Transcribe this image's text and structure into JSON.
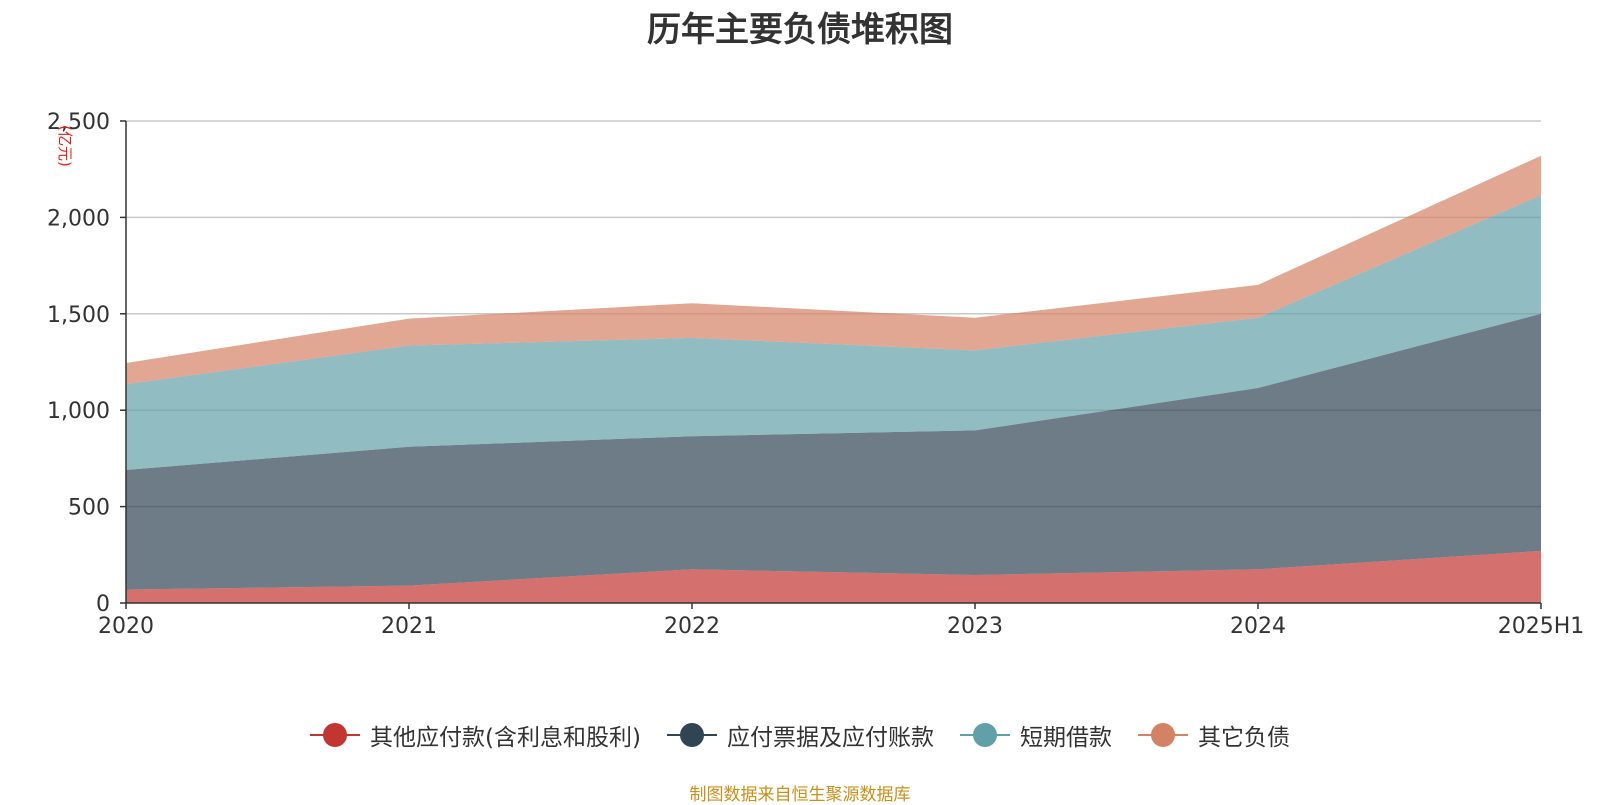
{
  "chart_data": {
    "type": "area",
    "stacked": true,
    "title": "历年主要负债堆积图",
    "unit": "(亿元)",
    "categories": [
      "2020",
      "2021",
      "2022",
      "2023",
      "2024",
      "2025H1"
    ],
    "ylim": [
      0,
      2500
    ],
    "yticks": [
      0,
      500,
      1000,
      1500,
      2000,
      2500
    ],
    "ytick_labels": [
      "0",
      "500",
      "1,000",
      "1,500",
      "2,000",
      "2,500"
    ],
    "grid": true,
    "legend_position": "bottom",
    "series": [
      {
        "name": "其他应付款(含利息和股利)",
        "color": "#c23531",
        "values": [
          70,
          90,
          175,
          145,
          175,
          270
        ]
      },
      {
        "name": "应付票据及应付账款",
        "color": "#2f4554",
        "values": [
          620,
          720,
          690,
          750,
          940,
          1230
        ]
      },
      {
        "name": "短期借款",
        "color": "#61a0a8",
        "values": [
          445,
          525,
          510,
          415,
          365,
          615
        ]
      },
      {
        "name": "其它负债",
        "color": "#d48265",
        "values": [
          110,
          140,
          180,
          170,
          170,
          205
        ]
      }
    ]
  },
  "source": "制图数据来自恒生聚源数据库"
}
